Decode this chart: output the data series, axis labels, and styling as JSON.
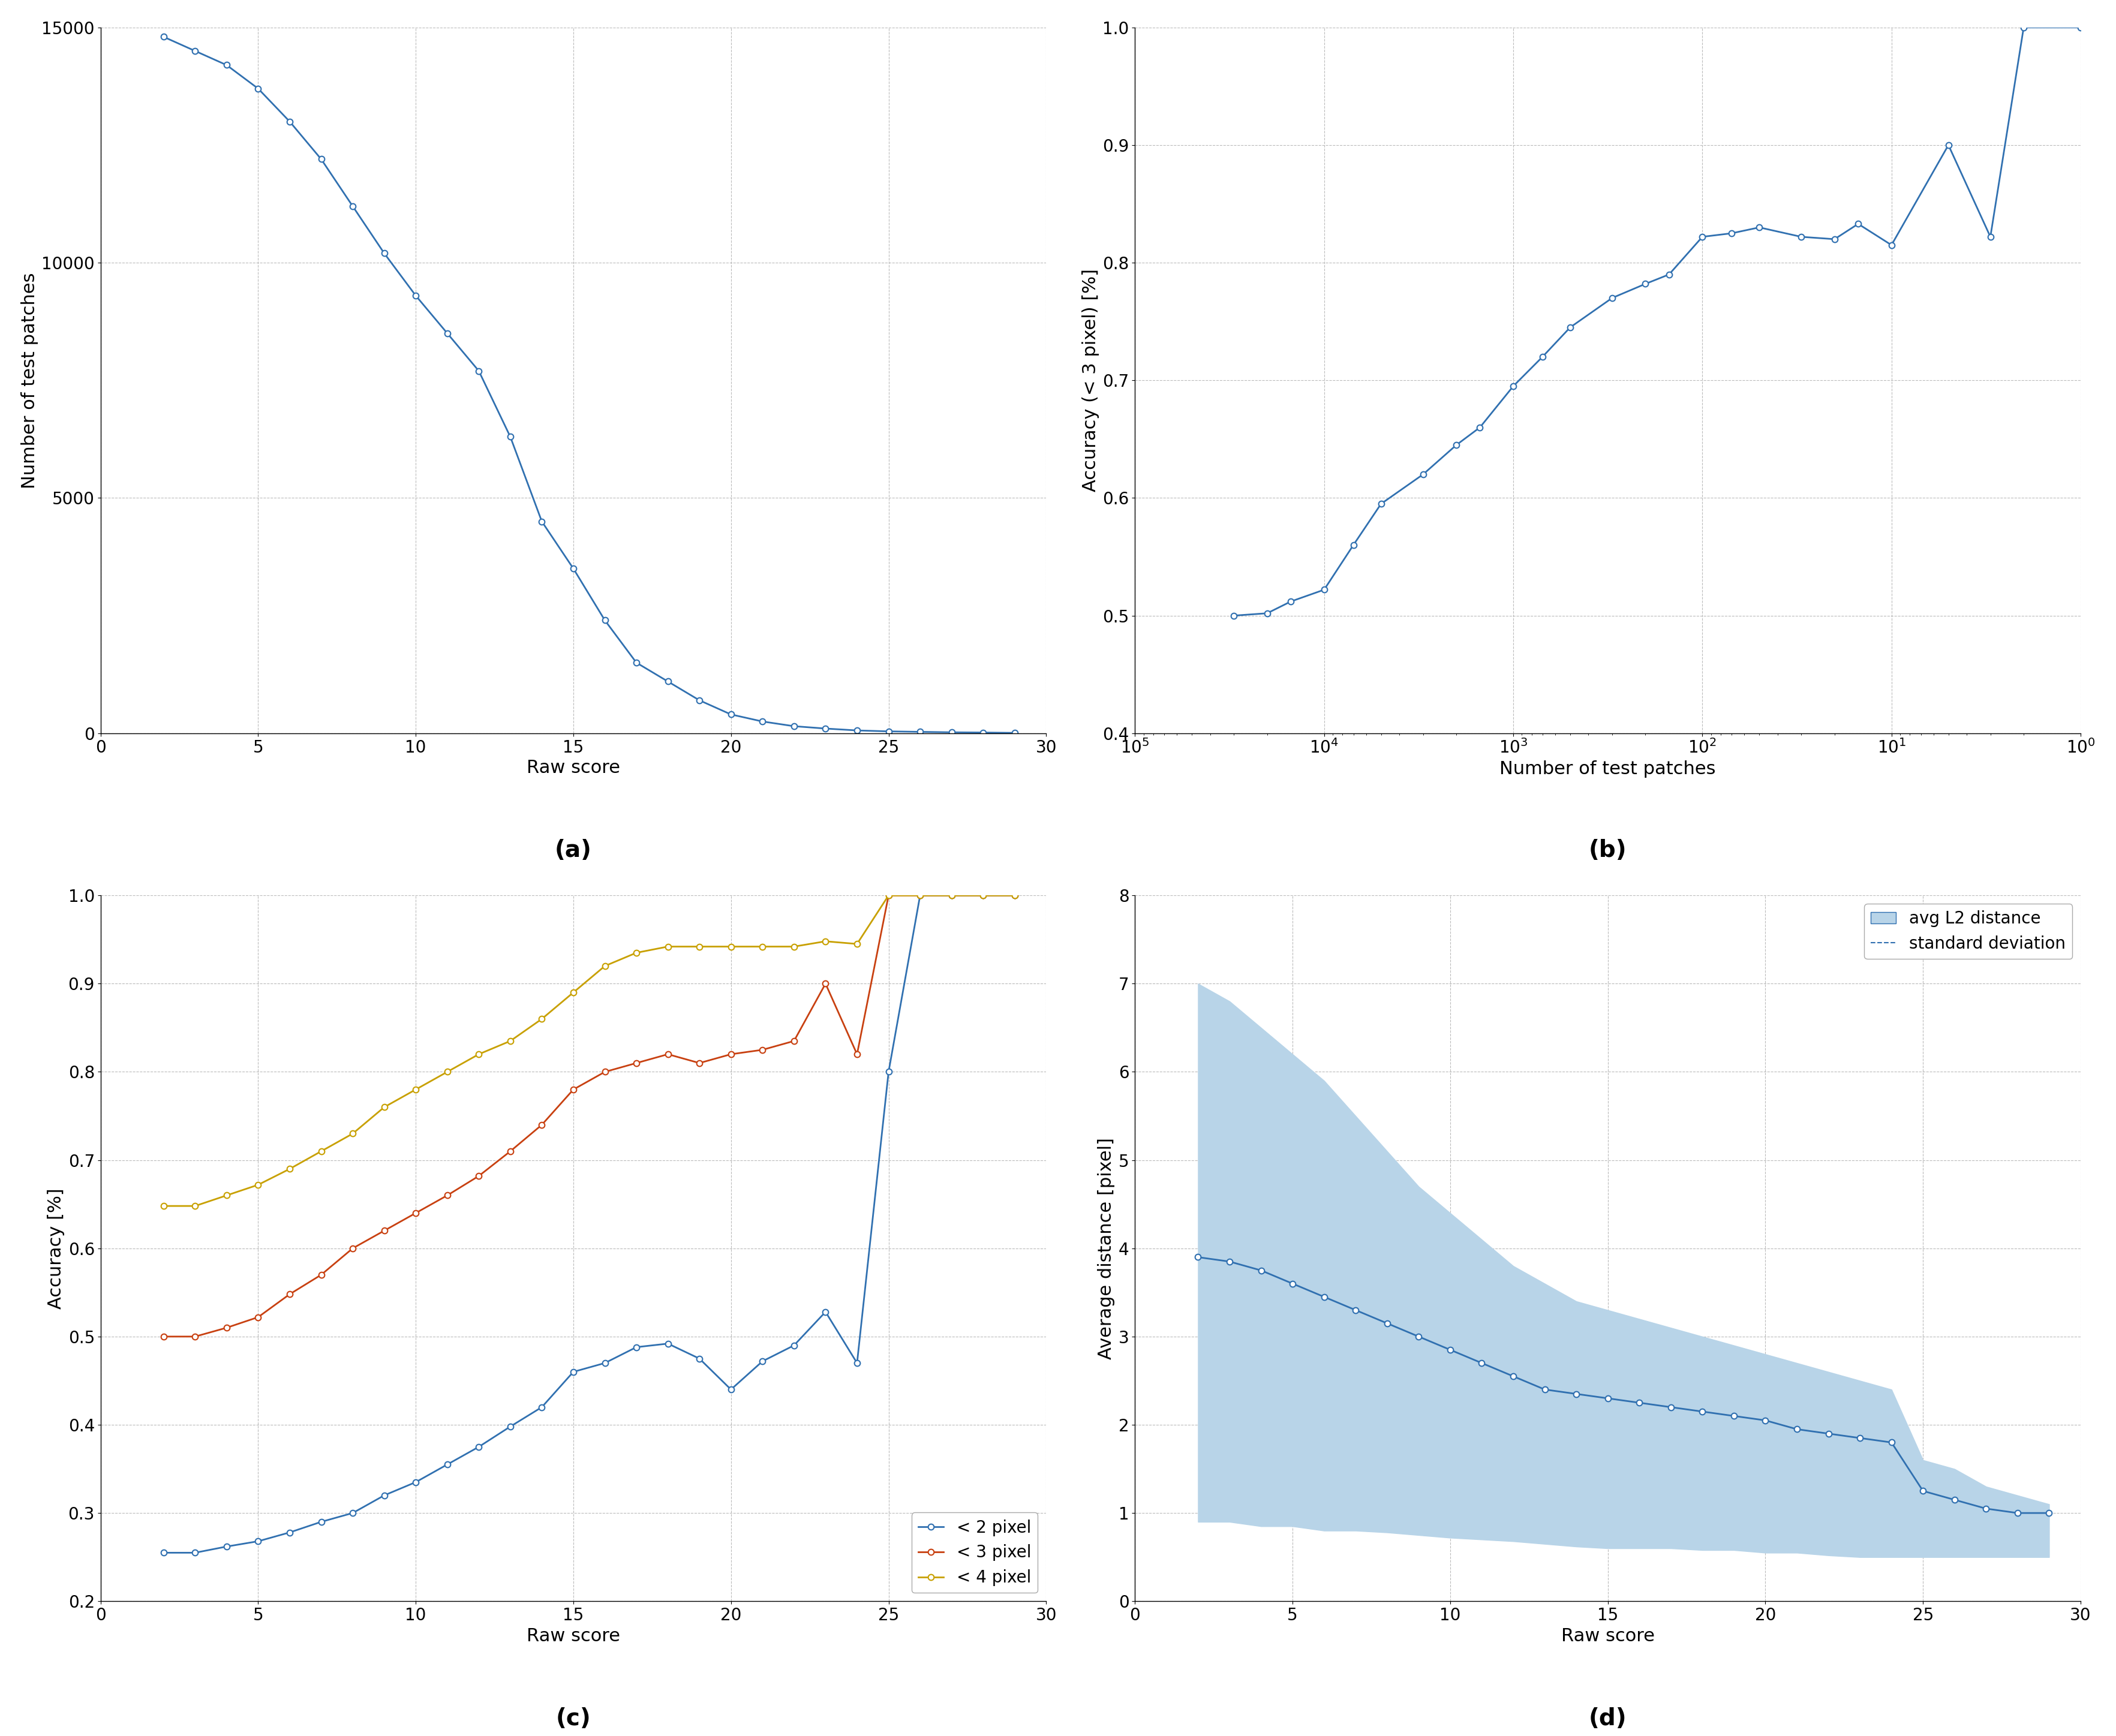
{
  "plot_a": {
    "x": [
      2,
      3,
      4,
      5,
      6,
      7,
      8,
      9,
      10,
      11,
      12,
      13,
      14,
      15,
      16,
      17,
      18,
      19,
      20,
      21,
      22,
      23,
      24,
      25,
      26,
      27,
      28,
      29
    ],
    "y": [
      14800,
      14500,
      14200,
      13700,
      13000,
      12200,
      11200,
      10200,
      9300,
      8500,
      7700,
      6300,
      4500,
      3500,
      2400,
      1500,
      1100,
      700,
      400,
      250,
      150,
      100,
      60,
      40,
      30,
      20,
      15,
      8
    ],
    "xlabel": "Raw score",
    "ylabel": "Number of test patches",
    "xlim": [
      0,
      30
    ],
    "ylim": [
      0,
      15000
    ],
    "yticks": [
      0,
      5000,
      10000,
      15000
    ],
    "xticks": [
      0,
      5,
      10,
      15,
      20,
      25,
      30
    ],
    "label": "(a)"
  },
  "plot_b": {
    "bx": [
      30000,
      20000,
      15000,
      10000,
      7000,
      5000,
      3000,
      2000,
      1500,
      1000,
      700,
      500,
      300,
      200,
      150,
      100,
      70,
      50,
      30,
      20,
      15,
      10,
      5,
      3,
      2,
      1
    ],
    "by": [
      0.5,
      0.502,
      0.512,
      0.522,
      0.56,
      0.595,
      0.62,
      0.645,
      0.66,
      0.695,
      0.72,
      0.745,
      0.77,
      0.782,
      0.79,
      0.822,
      0.825,
      0.83,
      0.822,
      0.82,
      0.833,
      0.815,
      0.9,
      0.822,
      1.0,
      1.0
    ],
    "xlabel": "Number of test patches",
    "ylabel": "Accuracy (< 3 pixel) [%]",
    "ylim": [
      0.4,
      1.0
    ],
    "yticks": [
      0.4,
      0.5,
      0.6,
      0.7,
      0.8,
      0.9,
      1.0
    ],
    "label": "(b)"
  },
  "plot_c": {
    "x": [
      2,
      3,
      4,
      5,
      6,
      7,
      8,
      9,
      10,
      11,
      12,
      13,
      14,
      15,
      16,
      17,
      18,
      19,
      20,
      21,
      22,
      23,
      24,
      25,
      26,
      27,
      28,
      29
    ],
    "y_2px": [
      0.255,
      0.255,
      0.262,
      0.268,
      0.278,
      0.29,
      0.3,
      0.32,
      0.335,
      0.355,
      0.375,
      0.398,
      0.42,
      0.46,
      0.47,
      0.488,
      0.492,
      0.475,
      0.44,
      0.472,
      0.49,
      0.528,
      0.47,
      0.8,
      1.0,
      1.0,
      1.0,
      1.0
    ],
    "y_3px": [
      0.5,
      0.5,
      0.51,
      0.522,
      0.548,
      0.57,
      0.6,
      0.62,
      0.64,
      0.66,
      0.682,
      0.71,
      0.74,
      0.78,
      0.8,
      0.81,
      0.82,
      0.81,
      0.82,
      0.825,
      0.835,
      0.9,
      0.82,
      1.0,
      1.0,
      1.0,
      1.0,
      1.0
    ],
    "y_4px": [
      0.648,
      0.648,
      0.66,
      0.672,
      0.69,
      0.71,
      0.73,
      0.76,
      0.78,
      0.8,
      0.82,
      0.835,
      0.86,
      0.89,
      0.92,
      0.935,
      0.942,
      0.942,
      0.942,
      0.942,
      0.942,
      0.948,
      0.945,
      1.0,
      1.0,
      1.0,
      1.0,
      1.0
    ],
    "xlabel": "Raw score",
    "ylabel": "Accuracy [%]",
    "xlim": [
      0,
      30
    ],
    "ylim": [
      0.2,
      1.0
    ],
    "yticks": [
      0.2,
      0.3,
      0.4,
      0.5,
      0.6,
      0.7,
      0.8,
      0.9,
      1.0
    ],
    "xticks": [
      0,
      5,
      10,
      15,
      20,
      25,
      30
    ],
    "label": "(c)"
  },
  "plot_d": {
    "x": [
      2,
      3,
      4,
      5,
      6,
      7,
      8,
      9,
      10,
      11,
      12,
      13,
      14,
      15,
      16,
      17,
      18,
      19,
      20,
      21,
      22,
      23,
      24,
      25,
      26,
      27,
      28,
      29
    ],
    "y_mean": [
      3.9,
      3.85,
      3.75,
      3.6,
      3.45,
      3.3,
      3.15,
      3.0,
      2.85,
      2.7,
      2.55,
      2.4,
      2.35,
      2.3,
      2.25,
      2.2,
      2.15,
      2.1,
      2.05,
      1.95,
      1.9,
      1.85,
      1.8,
      1.25,
      1.15,
      1.05,
      1.0,
      1.0
    ],
    "y_upper": [
      7.0,
      6.8,
      6.5,
      6.2,
      5.9,
      5.5,
      5.1,
      4.7,
      4.4,
      4.1,
      3.8,
      3.6,
      3.4,
      3.3,
      3.2,
      3.1,
      3.0,
      2.9,
      2.8,
      2.7,
      2.6,
      2.5,
      2.4,
      1.6,
      1.5,
      1.3,
      1.2,
      1.1
    ],
    "y_lower": [
      0.9,
      0.9,
      0.85,
      0.85,
      0.8,
      0.8,
      0.78,
      0.75,
      0.72,
      0.7,
      0.68,
      0.65,
      0.62,
      0.6,
      0.6,
      0.6,
      0.58,
      0.58,
      0.55,
      0.55,
      0.52,
      0.5,
      0.5,
      0.5,
      0.5,
      0.5,
      0.5,
      0.5
    ],
    "xlabel": "Raw score",
    "ylabel": "Average distance [pixel]",
    "xlim": [
      0,
      30
    ],
    "ylim": [
      0,
      8
    ],
    "yticks": [
      0,
      1,
      2,
      3,
      4,
      5,
      6,
      7,
      8
    ],
    "xticks": [
      0,
      5,
      10,
      15,
      20,
      25,
      30
    ],
    "label": "(d)"
  },
  "line_color": "#3070b0",
  "fill_color": "#b8d4e8",
  "color_2px": "#3070b0",
  "color_3px": "#c84010",
  "color_4px": "#c8a000",
  "marker": "o",
  "markersize": 7,
  "linewidth": 2.0,
  "background": "#ffffff",
  "grid_color": "#bbbbbb",
  "label_fontsize": 22,
  "tick_fontsize": 20,
  "caption_fontsize": 28
}
